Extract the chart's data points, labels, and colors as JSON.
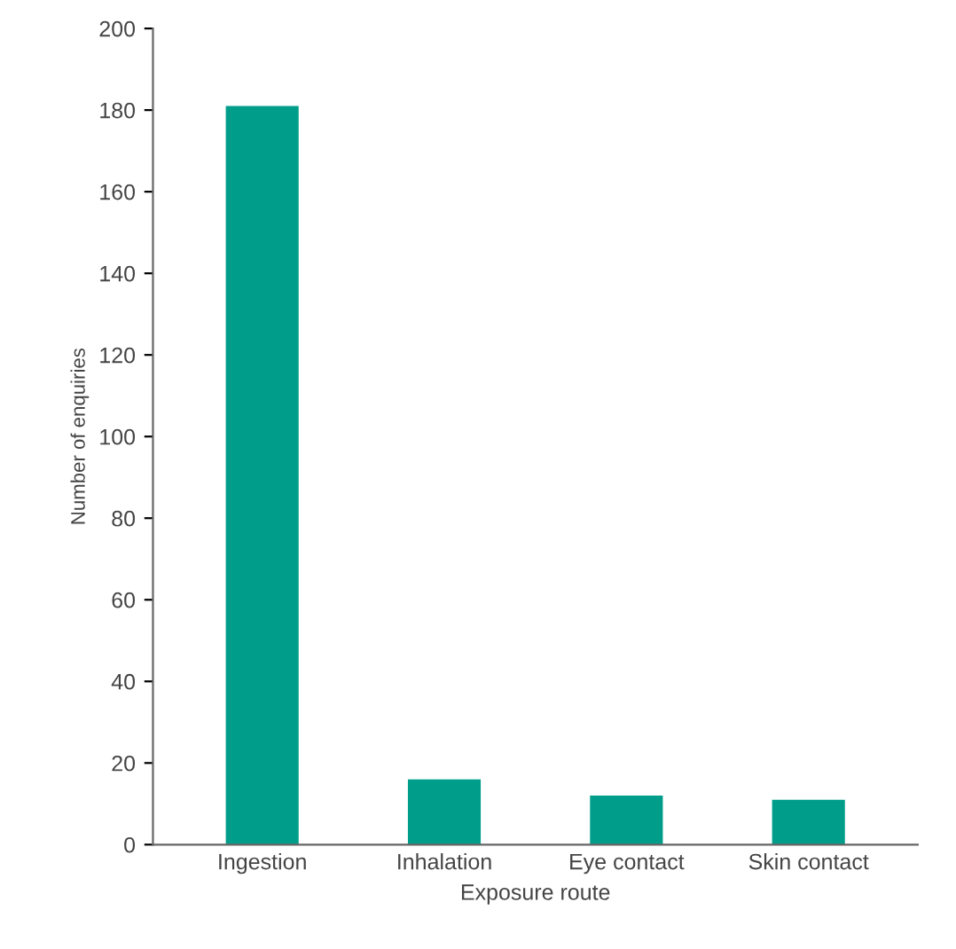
{
  "chart_data": {
    "type": "bar",
    "xlabel": "Exposure route",
    "ylabel": "Number of enquiries",
    "categories": [
      "Ingestion",
      "Inhalation",
      "Eye contact",
      "Skin contact"
    ],
    "values": [
      181,
      16,
      12,
      11
    ],
    "color": "#009e8a",
    "ylim": [
      0,
      200
    ],
    "yticks": [
      0,
      20,
      40,
      60,
      80,
      100,
      120,
      140,
      160,
      180,
      200
    ],
    "grid": false
  }
}
